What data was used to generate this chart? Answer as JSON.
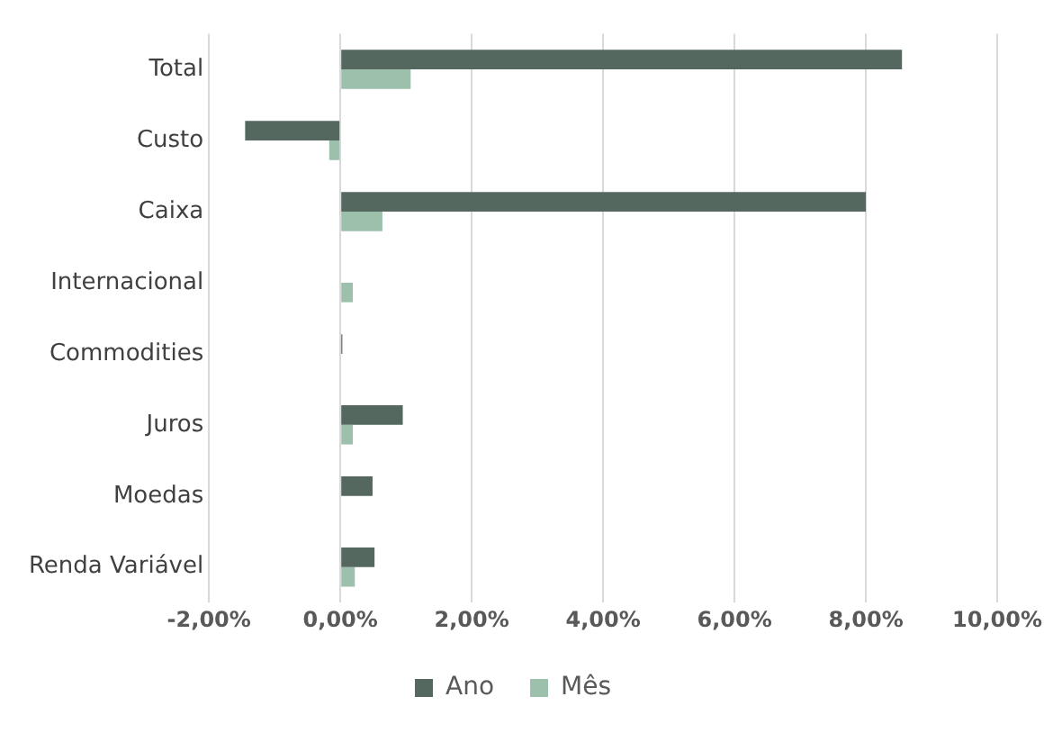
{
  "chart_data": {
    "type": "bar",
    "orientation": "horizontal",
    "categories": [
      "Total",
      "Custo",
      "Caixa",
      "Internacional",
      "Commodities",
      "Juros",
      "Moedas",
      "Renda Variável"
    ],
    "series": [
      {
        "name": "Ano",
        "color": "#546860",
        "values": [
          8.55,
          -1.45,
          8.0,
          0,
          0.03,
          0.95,
          0.49,
          0.52
        ]
      },
      {
        "name": "Mês",
        "color": "#9dc0ad",
        "values": [
          1.07,
          -0.17,
          0.64,
          0.19,
          null,
          0.19,
          null,
          0.22
        ]
      }
    ],
    "xlim": [
      -2,
      10
    ],
    "xticks": [
      {
        "value": -2,
        "label": "-2,00%"
      },
      {
        "value": 0,
        "label": "0,00%"
      },
      {
        "value": 2,
        "label": "2,00%"
      },
      {
        "value": 4,
        "label": "4,00%"
      },
      {
        "value": 6,
        "label": "6,00%"
      },
      {
        "value": 8,
        "label": "8,00%"
      },
      {
        "value": 10,
        "label": "10,00%"
      }
    ],
    "grid": "x",
    "legend": "bottom"
  }
}
